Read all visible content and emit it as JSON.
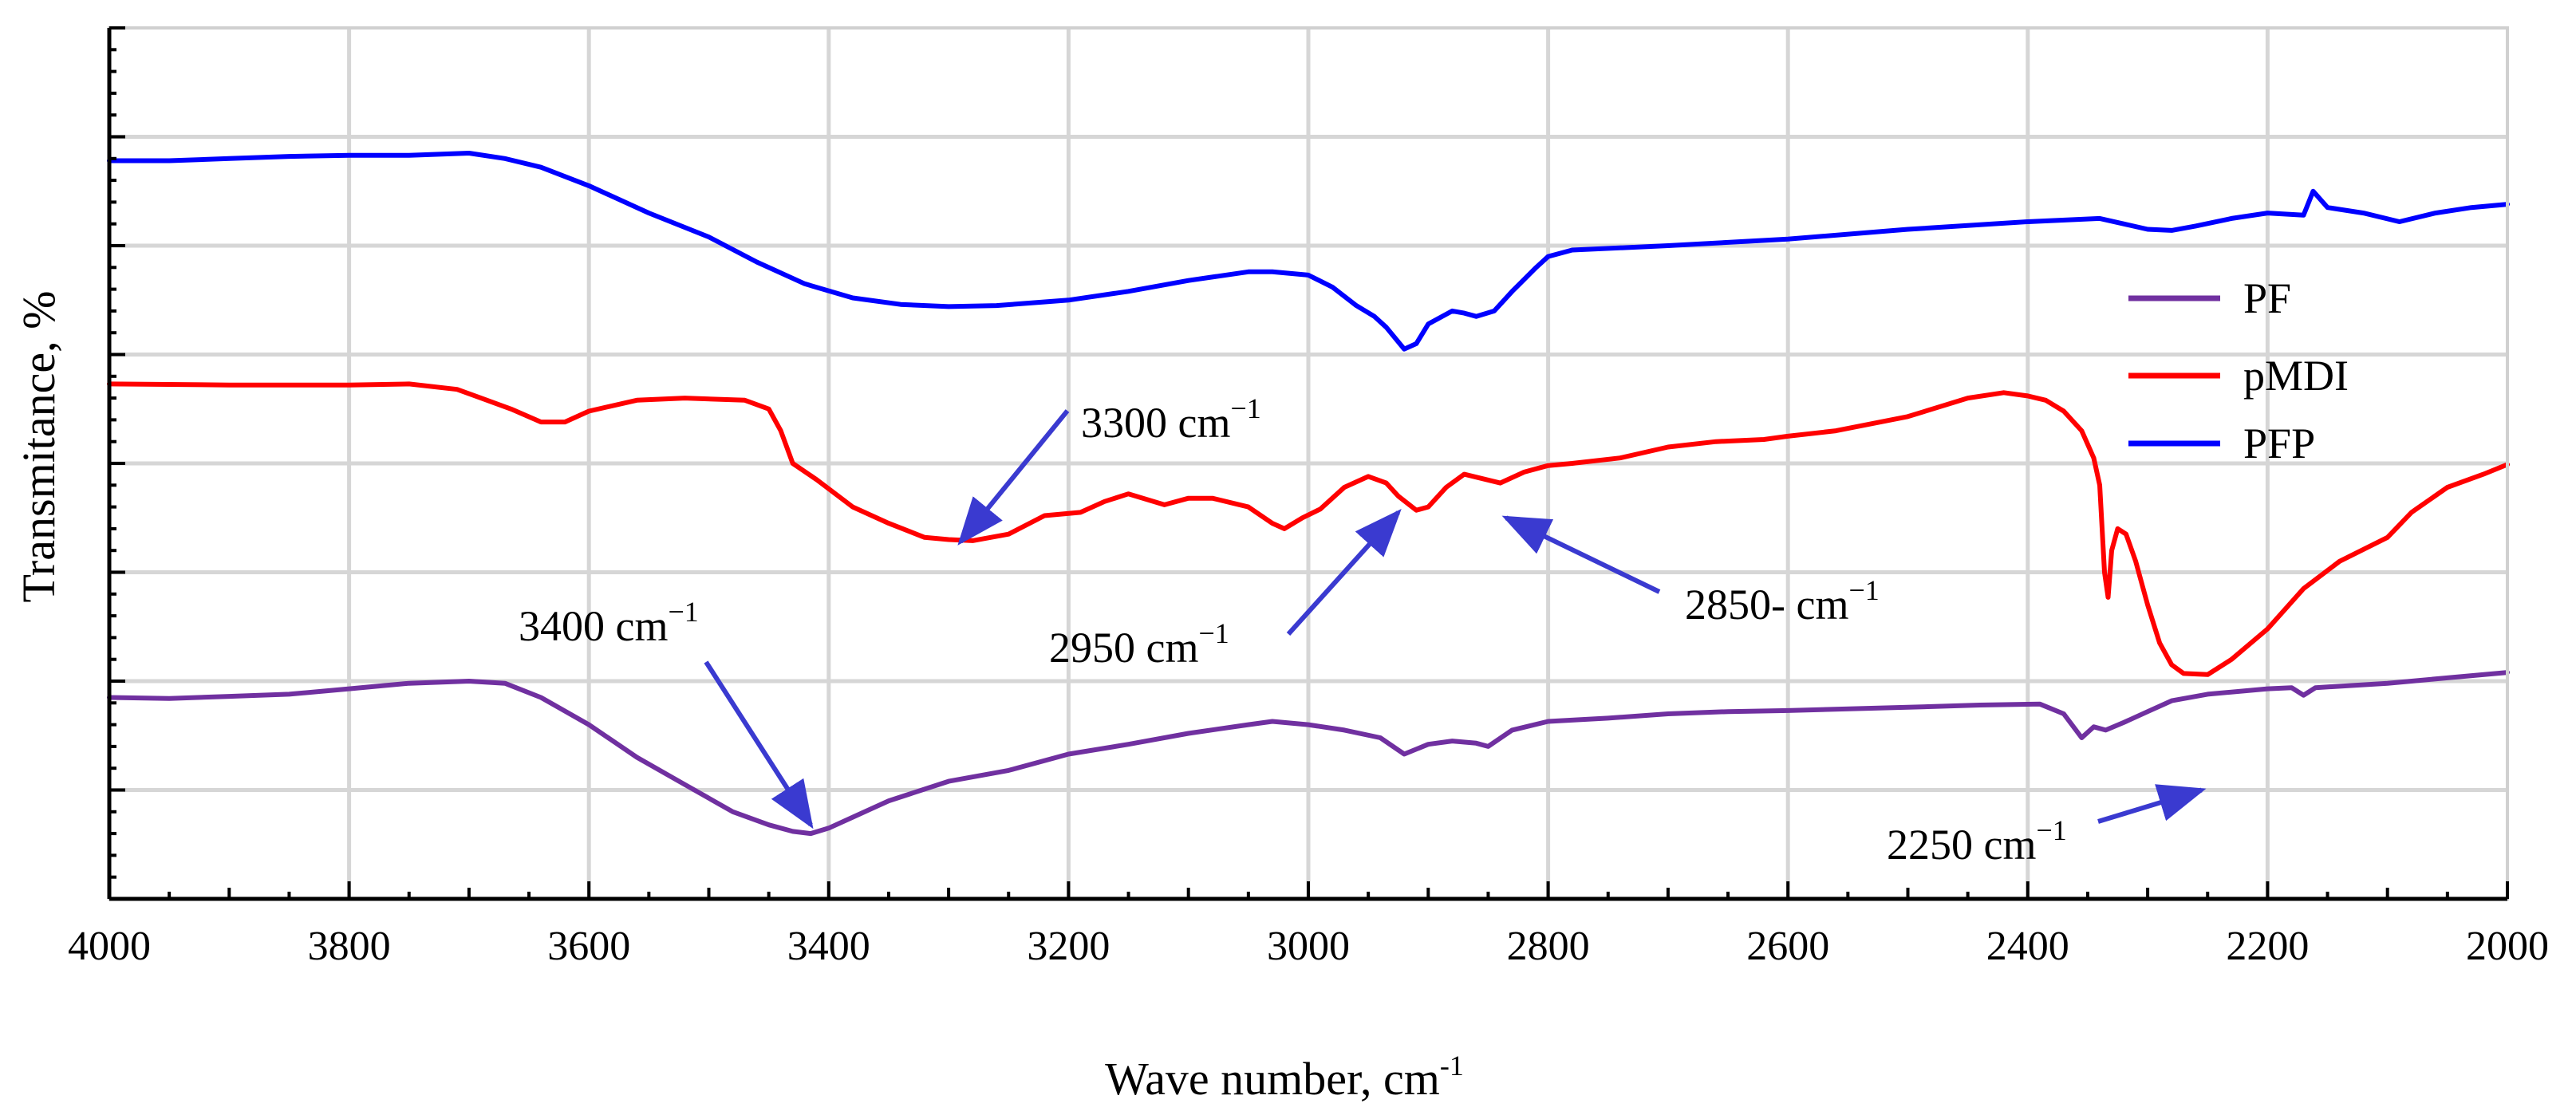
{
  "chart_data": {
    "type": "line",
    "xlabel": "Wave number, cm",
    "xlabel_sup": "-1",
    "ylabel": "Transmitance, %",
    "xlim": [
      4000,
      2000
    ],
    "x_reversed": true,
    "ylim": [
      0,
      8
    ],
    "y_tick_labels_shown": false,
    "grid": true,
    "legend_position": "right",
    "x_ticks": [
      "4000",
      "3800",
      "3600",
      "3400",
      "3200",
      "3000",
      "2800",
      "2600",
      "2400",
      "2200",
      "2000"
    ],
    "series": [
      {
        "name": "PF",
        "color": "#7030A0",
        "points": [
          [
            4000,
            1.85
          ],
          [
            3950,
            1.84
          ],
          [
            3900,
            1.86
          ],
          [
            3850,
            1.88
          ],
          [
            3800,
            1.93
          ],
          [
            3750,
            1.98
          ],
          [
            3700,
            2.0
          ],
          [
            3670,
            1.98
          ],
          [
            3640,
            1.85
          ],
          [
            3600,
            1.6
          ],
          [
            3560,
            1.3
          ],
          [
            3520,
            1.05
          ],
          [
            3480,
            0.8
          ],
          [
            3450,
            0.68
          ],
          [
            3430,
            0.62
          ],
          [
            3415,
            0.6
          ],
          [
            3400,
            0.65
          ],
          [
            3380,
            0.75
          ],
          [
            3350,
            0.9
          ],
          [
            3300,
            1.08
          ],
          [
            3250,
            1.18
          ],
          [
            3200,
            1.33
          ],
          [
            3150,
            1.42
          ],
          [
            3100,
            1.52
          ],
          [
            3050,
            1.6
          ],
          [
            3030,
            1.63
          ],
          [
            3000,
            1.6
          ],
          [
            2970,
            1.55
          ],
          [
            2940,
            1.48
          ],
          [
            2920,
            1.33
          ],
          [
            2900,
            1.42
          ],
          [
            2880,
            1.45
          ],
          [
            2860,
            1.43
          ],
          [
            2850,
            1.4
          ],
          [
            2830,
            1.55
          ],
          [
            2800,
            1.63
          ],
          [
            2750,
            1.66
          ],
          [
            2700,
            1.7
          ],
          [
            2650,
            1.72
          ],
          [
            2600,
            1.73
          ],
          [
            2500,
            1.76
          ],
          [
            2440,
            1.78
          ],
          [
            2390,
            1.79
          ],
          [
            2370,
            1.7
          ],
          [
            2355,
            1.48
          ],
          [
            2345,
            1.58
          ],
          [
            2335,
            1.55
          ],
          [
            2320,
            1.62
          ],
          [
            2300,
            1.72
          ],
          [
            2280,
            1.82
          ],
          [
            2250,
            1.88
          ],
          [
            2200,
            1.93
          ],
          [
            2180,
            1.94
          ],
          [
            2170,
            1.87
          ],
          [
            2160,
            1.94
          ],
          [
            2100,
            1.98
          ],
          [
            2050,
            2.03
          ],
          [
            2000,
            2.08
          ]
        ]
      },
      {
        "name": "pMDI",
        "color": "#FF0000",
        "points": [
          [
            4000,
            4.73
          ],
          [
            3900,
            4.72
          ],
          [
            3800,
            4.72
          ],
          [
            3750,
            4.73
          ],
          [
            3710,
            4.68
          ],
          [
            3690,
            4.6
          ],
          [
            3665,
            4.5
          ],
          [
            3640,
            4.38
          ],
          [
            3620,
            4.38
          ],
          [
            3600,
            4.48
          ],
          [
            3560,
            4.58
          ],
          [
            3520,
            4.6
          ],
          [
            3470,
            4.58
          ],
          [
            3450,
            4.5
          ],
          [
            3440,
            4.3
          ],
          [
            3430,
            4.0
          ],
          [
            3410,
            3.85
          ],
          [
            3380,
            3.6
          ],
          [
            3350,
            3.45
          ],
          [
            3320,
            3.32
          ],
          [
            3300,
            3.3
          ],
          [
            3280,
            3.29
          ],
          [
            3250,
            3.35
          ],
          [
            3220,
            3.52
          ],
          [
            3190,
            3.55
          ],
          [
            3170,
            3.65
          ],
          [
            3150,
            3.72
          ],
          [
            3120,
            3.62
          ],
          [
            3100,
            3.68
          ],
          [
            3080,
            3.68
          ],
          [
            3050,
            3.6
          ],
          [
            3030,
            3.45
          ],
          [
            3020,
            3.4
          ],
          [
            3005,
            3.5
          ],
          [
            2990,
            3.58
          ],
          [
            2970,
            3.78
          ],
          [
            2950,
            3.88
          ],
          [
            2935,
            3.82
          ],
          [
            2925,
            3.7
          ],
          [
            2910,
            3.57
          ],
          [
            2900,
            3.6
          ],
          [
            2885,
            3.78
          ],
          [
            2870,
            3.9
          ],
          [
            2855,
            3.86
          ],
          [
            2840,
            3.82
          ],
          [
            2820,
            3.92
          ],
          [
            2800,
            3.98
          ],
          [
            2780,
            4.0
          ],
          [
            2740,
            4.05
          ],
          [
            2700,
            4.15
          ],
          [
            2660,
            4.2
          ],
          [
            2620,
            4.22
          ],
          [
            2600,
            4.25
          ],
          [
            2560,
            4.3
          ],
          [
            2500,
            4.43
          ],
          [
            2450,
            4.6
          ],
          [
            2420,
            4.65
          ],
          [
            2400,
            4.62
          ],
          [
            2385,
            4.58
          ],
          [
            2370,
            4.48
          ],
          [
            2355,
            4.3
          ],
          [
            2345,
            4.05
          ],
          [
            2340,
            3.8
          ],
          [
            2336,
            3.0
          ],
          [
            2333,
            2.77
          ],
          [
            2330,
            3.2
          ],
          [
            2325,
            3.4
          ],
          [
            2318,
            3.35
          ],
          [
            2310,
            3.1
          ],
          [
            2300,
            2.7
          ],
          [
            2290,
            2.35
          ],
          [
            2280,
            2.15
          ],
          [
            2270,
            2.07
          ],
          [
            2250,
            2.06
          ],
          [
            2230,
            2.2
          ],
          [
            2200,
            2.48
          ],
          [
            2170,
            2.85
          ],
          [
            2140,
            3.1
          ],
          [
            2100,
            3.32
          ],
          [
            2080,
            3.55
          ],
          [
            2050,
            3.78
          ],
          [
            2020,
            3.9
          ],
          [
            2000,
            3.99
          ]
        ]
      },
      {
        "name": "PFP",
        "color": "#0000FF",
        "points": [
          [
            4000,
            6.78
          ],
          [
            3950,
            6.78
          ],
          [
            3900,
            6.8
          ],
          [
            3850,
            6.82
          ],
          [
            3800,
            6.83
          ],
          [
            3750,
            6.83
          ],
          [
            3700,
            6.85
          ],
          [
            3670,
            6.8
          ],
          [
            3640,
            6.72
          ],
          [
            3600,
            6.55
          ],
          [
            3550,
            6.3
          ],
          [
            3500,
            6.08
          ],
          [
            3460,
            5.85
          ],
          [
            3420,
            5.65
          ],
          [
            3380,
            5.52
          ],
          [
            3340,
            5.46
          ],
          [
            3300,
            5.44
          ],
          [
            3260,
            5.45
          ],
          [
            3200,
            5.5
          ],
          [
            3150,
            5.58
          ],
          [
            3100,
            5.68
          ],
          [
            3050,
            5.76
          ],
          [
            3030,
            5.76
          ],
          [
            3000,
            5.73
          ],
          [
            2980,
            5.62
          ],
          [
            2960,
            5.45
          ],
          [
            2945,
            5.35
          ],
          [
            2935,
            5.25
          ],
          [
            2920,
            5.05
          ],
          [
            2910,
            5.1
          ],
          [
            2900,
            5.28
          ],
          [
            2880,
            5.4
          ],
          [
            2870,
            5.38
          ],
          [
            2860,
            5.35
          ],
          [
            2845,
            5.4
          ],
          [
            2830,
            5.58
          ],
          [
            2810,
            5.8
          ],
          [
            2800,
            5.9
          ],
          [
            2780,
            5.96
          ],
          [
            2700,
            6.0
          ],
          [
            2600,
            6.06
          ],
          [
            2500,
            6.15
          ],
          [
            2400,
            6.22
          ],
          [
            2340,
            6.25
          ],
          [
            2320,
            6.2
          ],
          [
            2300,
            6.15
          ],
          [
            2280,
            6.14
          ],
          [
            2260,
            6.18
          ],
          [
            2230,
            6.25
          ],
          [
            2200,
            6.3
          ],
          [
            2170,
            6.28
          ],
          [
            2162,
            6.5
          ],
          [
            2150,
            6.35
          ],
          [
            2120,
            6.3
          ],
          [
            2090,
            6.22
          ],
          [
            2060,
            6.3
          ],
          [
            2030,
            6.35
          ],
          [
            2000,
            6.38
          ]
        ]
      }
    ],
    "annotations": [
      {
        "text": "3300 cm",
        "sup": "−1",
        "x": 3290,
        "y": 3.28,
        "label_at": [
          3170,
          4.25
        ]
      },
      {
        "text": "2950 cm",
        "sup": "−1",
        "x": 2925,
        "y": 3.55,
        "label_at": [
          2990,
          2.1
        ]
      },
      {
        "text": "2850- cm",
        "sup": "−1",
        "x": 2835,
        "y": 3.5,
        "label_at": [
          2700,
          2.8
        ]
      },
      {
        "text": "3400 cm",
        "sup": "−1",
        "x": 3415,
        "y": 0.68,
        "label_at": [
          3590,
          2.1
        ]
      },
      {
        "text": "2250 cm",
        "sup": "−1",
        "x": 2255,
        "y": 1.0,
        "label_at": [
          2350,
          0.1
        ]
      }
    ]
  }
}
